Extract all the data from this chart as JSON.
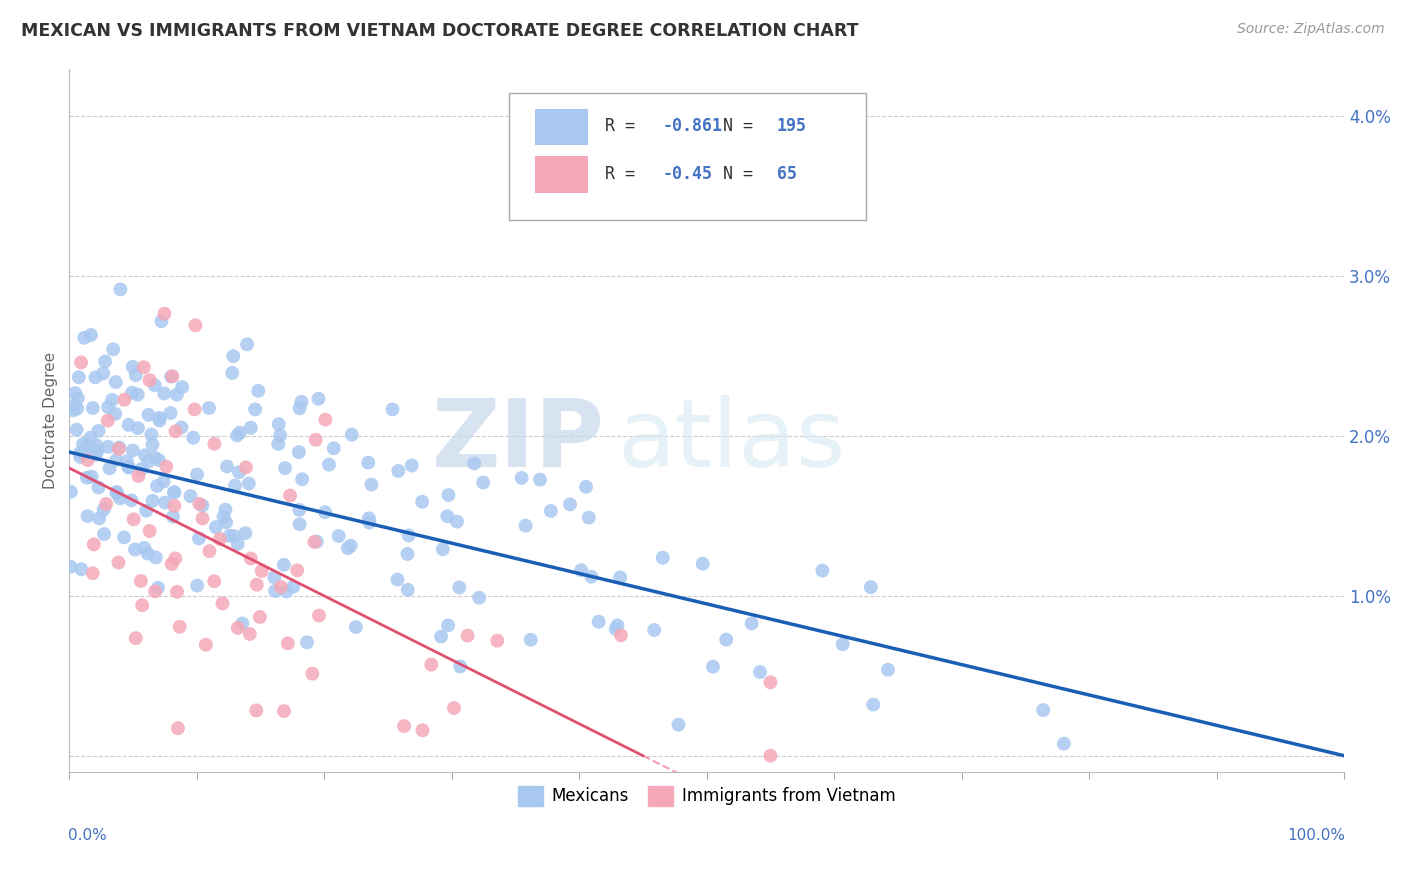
{
  "title": "MEXICAN VS IMMIGRANTS FROM VIETNAM DOCTORATE DEGREE CORRELATION CHART",
  "source": "Source: ZipAtlas.com",
  "ylabel": "Doctorate Degree",
  "y_ticks": [
    0.0,
    0.01,
    0.02,
    0.03,
    0.04
  ],
  "y_tick_labels": [
    "",
    "1.0%",
    "2.0%",
    "3.0%",
    "4.0%"
  ],
  "x_ticks": [
    0,
    0.1,
    0.2,
    0.3,
    0.4,
    0.5,
    0.6,
    0.7,
    0.8,
    0.9,
    1.0
  ],
  "xlim": [
    0,
    1.0
  ],
  "ylim": [
    -0.001,
    0.043
  ],
  "blue_color": "#A8C8F0",
  "pink_color": "#F4A8B8",
  "blue_line_color": "#1A5FB5",
  "pink_line_color": "#E05070",
  "pink_line_dashed_color": "#F0A0B0",
  "r_blue": -0.861,
  "n_blue": 195,
  "r_pink": -0.45,
  "n_pink": 65,
  "legend_label_blue": "Mexicans",
  "legend_label_pink": "Immigrants from Vietnam",
  "watermark_zip": "ZIP",
  "watermark_atlas": "atlas",
  "background_color": "#FFFFFF",
  "grid_color": "#CCCCCC",
  "figsize": [
    14.06,
    8.92
  ],
  "dpi": 100,
  "blue_line_intercept": 0.019,
  "blue_line_slope": -0.019,
  "pink_line_intercept": 0.018,
  "pink_line_slope": -0.04
}
